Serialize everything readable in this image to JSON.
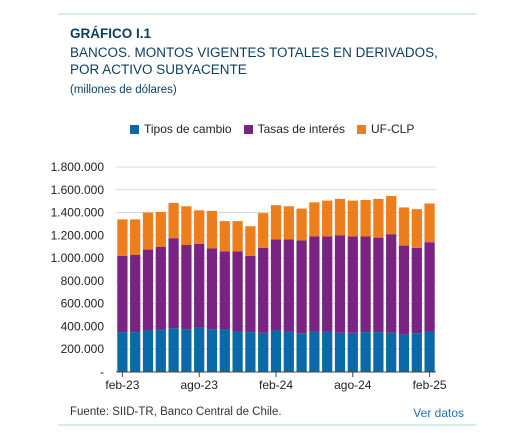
{
  "header": {
    "label": "GRÁFICO I.1",
    "title_line1": "BANCOS. MONTOS VIGENTES TOTALES EN DERIVADOS,",
    "title_line2": "POR ACTIVO SUBYACENTE",
    "subtitle": "(millones de dólares)"
  },
  "footer": {
    "source": "Fuente: SIID-TR, Banco Central de Chile.",
    "link": "Ver datos"
  },
  "colors": {
    "tipos_de_cambio": "#0a6aa8",
    "tasas_de_interes": "#7b2383",
    "uf_clp": "#ee7d1c",
    "grid": "#d7d7d7"
  },
  "chart_data": {
    "type": "bar",
    "stacked": true,
    "ylim": [
      0,
      1800000
    ],
    "yticks": [
      0,
      200000,
      400000,
      600000,
      800000,
      1000000,
      1200000,
      1400000,
      1600000,
      1800000
    ],
    "ytick_labels": [
      "-",
      "200.000",
      "400.000",
      "600.000",
      "800.000",
      "1.000.000",
      "1.200.000",
      "1.400.000",
      "1.600.000",
      "1.800.000"
    ],
    "xtick_labels": [
      {
        "index": 0,
        "label": "feb-23"
      },
      {
        "index": 6,
        "label": "ago-23"
      },
      {
        "index": 12,
        "label": "feb-24"
      },
      {
        "index": 18,
        "label": "ago-24"
      },
      {
        "index": 24,
        "label": "feb-25"
      }
    ],
    "grid": true,
    "legend_position": "top",
    "categories": [
      "feb-23",
      "mar-23",
      "abr-23",
      "may-23",
      "jun-23",
      "jul-23",
      "ago-23",
      "sep-23",
      "oct-23",
      "nov-23",
      "dic-23",
      "ene-24",
      "feb-24",
      "mar-24",
      "abr-24",
      "may-24",
      "jun-24",
      "jul-24",
      "ago-24",
      "sep-24",
      "oct-24",
      "nov-24",
      "dic-24",
      "ene-25",
      "feb-25"
    ],
    "series": [
      {
        "name": "Tipos de cambio",
        "values": [
          350000,
          350000,
          365000,
          370000,
          385000,
          375000,
          395000,
          375000,
          370000,
          360000,
          350000,
          345000,
          365000,
          355000,
          340000,
          355000,
          355000,
          345000,
          345000,
          350000,
          350000,
          345000,
          330000,
          340000,
          360000
        ]
      },
      {
        "name": "Tasas de interés",
        "values": [
          670000,
          680000,
          710000,
          730000,
          790000,
          740000,
          730000,
          710000,
          690000,
          700000,
          670000,
          745000,
          800000,
          810000,
          815000,
          835000,
          835000,
          855000,
          845000,
          840000,
          830000,
          865000,
          780000,
          750000,
          780000
        ]
      },
      {
        "name": "UF-CLP",
        "values": [
          320000,
          310000,
          325000,
          305000,
          310000,
          340000,
          295000,
          330000,
          265000,
          265000,
          260000,
          305000,
          300000,
          290000,
          280000,
          300000,
          315000,
          320000,
          315000,
          320000,
          340000,
          335000,
          335000,
          340000,
          340000
        ]
      }
    ]
  }
}
